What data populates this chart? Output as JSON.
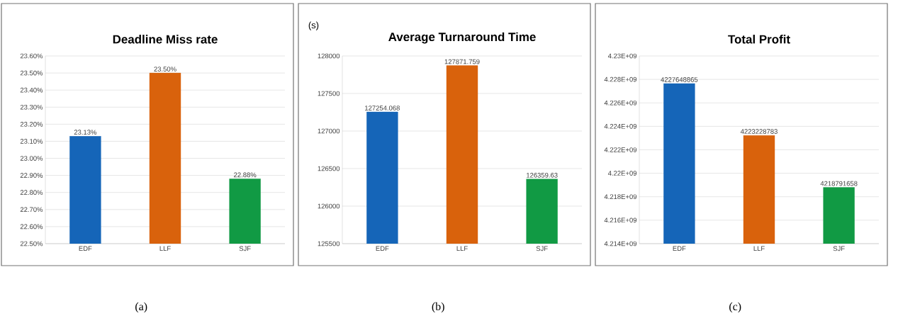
{
  "chart_data": [
    {
      "type": "bar",
      "title": "Deadline Miss rate",
      "categories": [
        "EDF",
        "LLF",
        "SJF"
      ],
      "values": [
        23.13,
        23.5,
        22.88
      ],
      "colors": [
        "#1565b8",
        "#d9620c",
        "#119a44"
      ],
      "value_labels": [
        "23.13%",
        "23.50%",
        "22.88%"
      ],
      "ylim": [
        22.5,
        23.6
      ],
      "yticks": [
        {
          "value": 22.5,
          "label": "22.50%"
        },
        {
          "value": 22.6,
          "label": "22.60%"
        },
        {
          "value": 22.7,
          "label": "22.70%"
        },
        {
          "value": 22.8,
          "label": "22.80%"
        },
        {
          "value": 22.9,
          "label": "22.90%"
        },
        {
          "value": 23.0,
          "label": "23.00%"
        },
        {
          "value": 23.1,
          "label": "23.10%"
        },
        {
          "value": 23.2,
          "label": "23.20%"
        },
        {
          "value": 23.3,
          "label": "23.30%"
        },
        {
          "value": 23.4,
          "label": "23.40%"
        },
        {
          "value": 23.5,
          "label": "23.50%"
        },
        {
          "value": 23.6,
          "label": "23.60%"
        }
      ],
      "grid": "y",
      "annotations": [
        "(a)"
      ]
    },
    {
      "type": "bar",
      "title": "Average Turnaround Time",
      "ylabel": "(s)",
      "categories": [
        "EDF",
        "LLF",
        "SJF"
      ],
      "values": [
        127254.068,
        127871.759,
        126359.63
      ],
      "colors": [
        "#1565b8",
        "#d9620c",
        "#119a44"
      ],
      "data_labels": true,
      "ylim": [
        125500,
        128000
      ],
      "yticks": [
        125500,
        126000,
        126500,
        127000,
        127500,
        128000
      ],
      "grid": "y",
      "annotations": [
        "(b)"
      ]
    },
    {
      "type": "bar",
      "title": "Total Profit",
      "categories": [
        "EDF",
        "LLF",
        "SJF"
      ],
      "values": [
        4227648865,
        4223228783,
        4218791658
      ],
      "colors": [
        "#1565b8",
        "#d9620c",
        "#119a44"
      ],
      "data_labels": true,
      "ylim": [
        4214000000,
        4230000000
      ],
      "yticks": [
        {
          "value": 4214000000,
          "label": "4.214E+09"
        },
        {
          "value": 4216000000,
          "label": "4.216E+09"
        },
        {
          "value": 4218000000,
          "label": "4.218E+09"
        },
        {
          "value": 4220000000,
          "label": "4.22E+09"
        },
        {
          "value": 4222000000,
          "label": "4.222E+09"
        },
        {
          "value": 4224000000,
          "label": "4.224E+09"
        },
        {
          "value": 4226000000,
          "label": "4.226E+09"
        },
        {
          "value": 4228000000,
          "label": "4.228E+09"
        },
        {
          "value": 4230000000,
          "label": "4.23E+09"
        }
      ],
      "grid": "y",
      "annotations": [
        "(c)"
      ]
    }
  ]
}
